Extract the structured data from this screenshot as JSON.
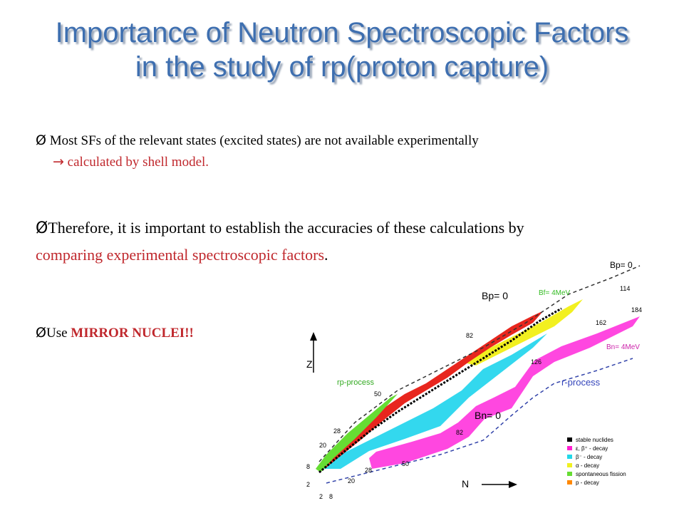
{
  "title": {
    "line1": "Importance of Neutron Spectroscopic Factors",
    "line2": "in the study of rp(proton capture)"
  },
  "bullets": {
    "b1_marker": "Ø",
    "b1_text": "Most SFs of the relevant states (excited states) are not available experimentally",
    "b1_sub_arrow": "→",
    "b1_sub_text": "calculated by shell model.",
    "b2_marker": "Ø",
    "b2_text": "Therefore, it is important to establish the accuracies of these calculations by",
    "b2_red": "comparing experimental spectroscopic factors",
    "b2_end": ".",
    "b3_marker": "Ø",
    "b3_prefix": "Use ",
    "b3_bold": "MIRROR NUCLEI!!"
  },
  "diagram": {
    "axis_y": "Z",
    "axis_x": "N",
    "label_bp0_top": "Bp= 0",
    "label_bp0_mid": "Bp= 0",
    "label_bf4": "Bf= 4MeV",
    "label_bn4": "Bn= 4MeV",
    "label_bn0": "Bn= 0",
    "label_rp": "rp-process",
    "label_r": "r-process",
    "magic_left": [
      "2",
      "8",
      "20",
      "28",
      "50",
      "82"
    ],
    "magic_bottom": [
      "2",
      "8",
      "20",
      "28",
      "50",
      "82",
      "126",
      "162",
      "184"
    ],
    "magic_top": [
      "114"
    ],
    "legend": [
      {
        "label": "stable nuclides",
        "color": "#000000"
      },
      {
        "label": "ε, β⁺ - decay",
        "color": "#ff20d0"
      },
      {
        "label": "β⁻ - decay",
        "color": "#22d8e8"
      },
      {
        "label": "α - decay",
        "color": "#f0f020"
      },
      {
        "label": "spontaneous fission",
        "color": "#66dd33"
      },
      {
        "label": "p - decay",
        "color": "#ff8800"
      }
    ]
  }
}
